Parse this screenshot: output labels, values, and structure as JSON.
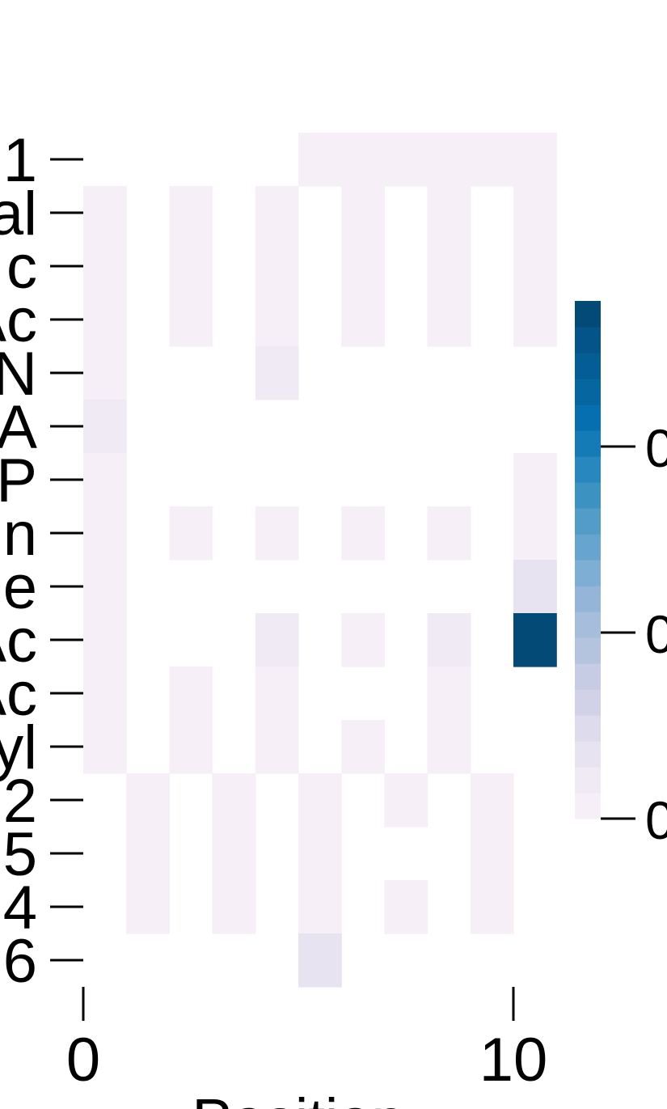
{
  "chart_data": {
    "type": "heatmap",
    "title": "",
    "xlabel": "Position",
    "ylabel": "",
    "x_ticks": [
      0,
      10
    ],
    "x_tick_labels": [
      "0",
      "10"
    ],
    "row_labels": [
      "1",
      "al",
      "c",
      "Ac",
      "N",
      "A",
      "P",
      "n",
      "e",
      "Ac",
      "Ac",
      "yl",
      "2",
      "5",
      "4",
      "6"
    ],
    "column_count": 11,
    "matrix": [
      [
        null,
        null,
        null,
        null,
        null,
        0.02,
        0.02,
        0.02,
        0.02,
        0.02,
        0.02
      ],
      [
        0.02,
        null,
        0.02,
        null,
        0.02,
        null,
        0.02,
        null,
        0.02,
        null,
        0.02
      ],
      [
        0.02,
        null,
        0.02,
        null,
        0.02,
        null,
        0.02,
        null,
        0.02,
        null,
        0.02
      ],
      [
        0.02,
        null,
        0.02,
        null,
        0.02,
        null,
        0.02,
        null,
        0.02,
        null,
        0.02
      ],
      [
        0.02,
        null,
        null,
        null,
        0.06,
        null,
        null,
        null,
        null,
        null,
        null
      ],
      [
        0.04,
        null,
        null,
        null,
        null,
        null,
        null,
        null,
        null,
        null,
        null
      ],
      [
        0.02,
        null,
        null,
        null,
        null,
        null,
        null,
        null,
        null,
        null,
        0.02
      ],
      [
        0.02,
        null,
        0.02,
        null,
        0.02,
        null,
        0.02,
        null,
        0.02,
        null,
        0.02
      ],
      [
        0.02,
        null,
        null,
        null,
        null,
        null,
        null,
        null,
        null,
        null,
        0.1
      ],
      [
        0.02,
        null,
        null,
        null,
        0.04,
        null,
        0.02,
        null,
        0.04,
        null,
        1.0
      ],
      [
        0.02,
        null,
        0.02,
        null,
        0.02,
        null,
        null,
        null,
        0.02,
        null,
        null
      ],
      [
        0.02,
        null,
        0.02,
        null,
        0.02,
        null,
        0.02,
        null,
        0.02,
        null,
        null
      ],
      [
        null,
        0.02,
        null,
        0.02,
        null,
        0.02,
        null,
        0.02,
        null,
        0.02,
        null
      ],
      [
        null,
        0.02,
        null,
        0.02,
        null,
        0.02,
        null,
        null,
        null,
        0.02,
        null
      ],
      [
        null,
        0.02,
        null,
        0.02,
        null,
        0.02,
        null,
        0.02,
        null,
        0.02,
        null
      ],
      [
        null,
        null,
        null,
        null,
        null,
        0.1,
        null,
        null,
        null,
        null,
        null
      ]
    ],
    "colorbar": {
      "colors": [
        "#f6eff7",
        "#f0eaf4",
        "#e7e3f0",
        "#dddbec",
        "#d1d2e7",
        "#c6cce3",
        "#b4c4df",
        "#a6bddb",
        "#95b5d8",
        "#7eaed4",
        "#67a5cf",
        "#549cc8",
        "#3c93c2",
        "#2787be",
        "#147bb7",
        "#056faf",
        "#0566a0",
        "#045d94",
        "#045489",
        "#034a76"
      ],
      "tick_labels": [
        "0",
        "0",
        "0"
      ]
    },
    "grid": false,
    "legend": "colorbar-right"
  }
}
